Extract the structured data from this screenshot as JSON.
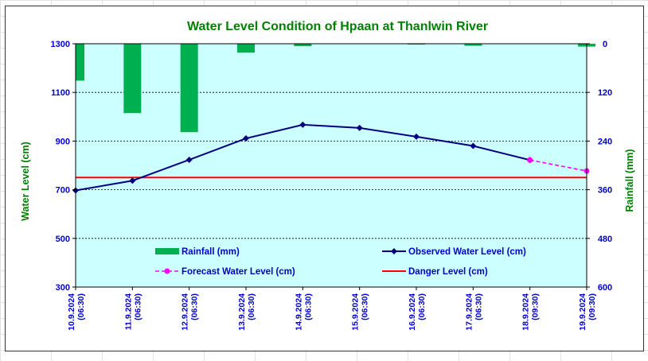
{
  "chart_data": {
    "type": "line",
    "title": "Water Level Condition of Hpaan at Thanlwin River",
    "ylabel": "Water Level (cm)",
    "y2label": "Rainfall (mm)",
    "ylim": [
      300,
      1300
    ],
    "y2lim": [
      0,
      600
    ],
    "y2_inverted": true,
    "yticks": [
      "1300",
      "1100",
      "900",
      "700",
      "500",
      "300"
    ],
    "y2ticks": [
      "0",
      "120",
      "240",
      "360",
      "480",
      "600"
    ],
    "categories": [
      [
        "10.9.2024",
        "(06:30)"
      ],
      [
        "11.9.2024",
        "(06:30)"
      ],
      [
        "12.9.2024",
        "(06:30)"
      ],
      [
        "13.9.2024",
        "(06:30)"
      ],
      [
        "14.9.2024",
        "(06:30)"
      ],
      [
        "15.9.2024",
        "(06:30)"
      ],
      [
        "16.9.2024",
        "(06:30)"
      ],
      [
        "17.9.2024",
        "(06:30)"
      ],
      [
        "18.9.2024",
        "(09:30)"
      ],
      [
        "19.9.2024",
        "(09:30)"
      ]
    ],
    "series": [
      {
        "name": "Rainfall (mm)",
        "kind": "bar",
        "axis": "right",
        "color": "#00b050",
        "values": [
          91,
          171,
          218,
          22,
          6,
          0,
          2,
          5,
          0,
          7
        ]
      },
      {
        "name": "Observed Water Level (cm)",
        "kind": "line",
        "axis": "left",
        "color": "#000080",
        "values": [
          697,
          737,
          823,
          911,
          967,
          954,
          918,
          880,
          822,
          null
        ]
      },
      {
        "name": "Forecast Water Level (cm)",
        "kind": "dashed-line",
        "axis": "left",
        "color": "#ff00ff",
        "values": [
          null,
          null,
          null,
          null,
          null,
          null,
          null,
          null,
          822,
          777
        ]
      },
      {
        "name": "Danger Level (cm)",
        "kind": "hline",
        "axis": "left",
        "color": "#ff0000",
        "value": 750
      }
    ],
    "grid": true,
    "legend_position": "inside-bottom",
    "colors": {
      "title": "#008000",
      "axis_text": "#0000cc",
      "plot_bg": "#ccffff"
    }
  }
}
